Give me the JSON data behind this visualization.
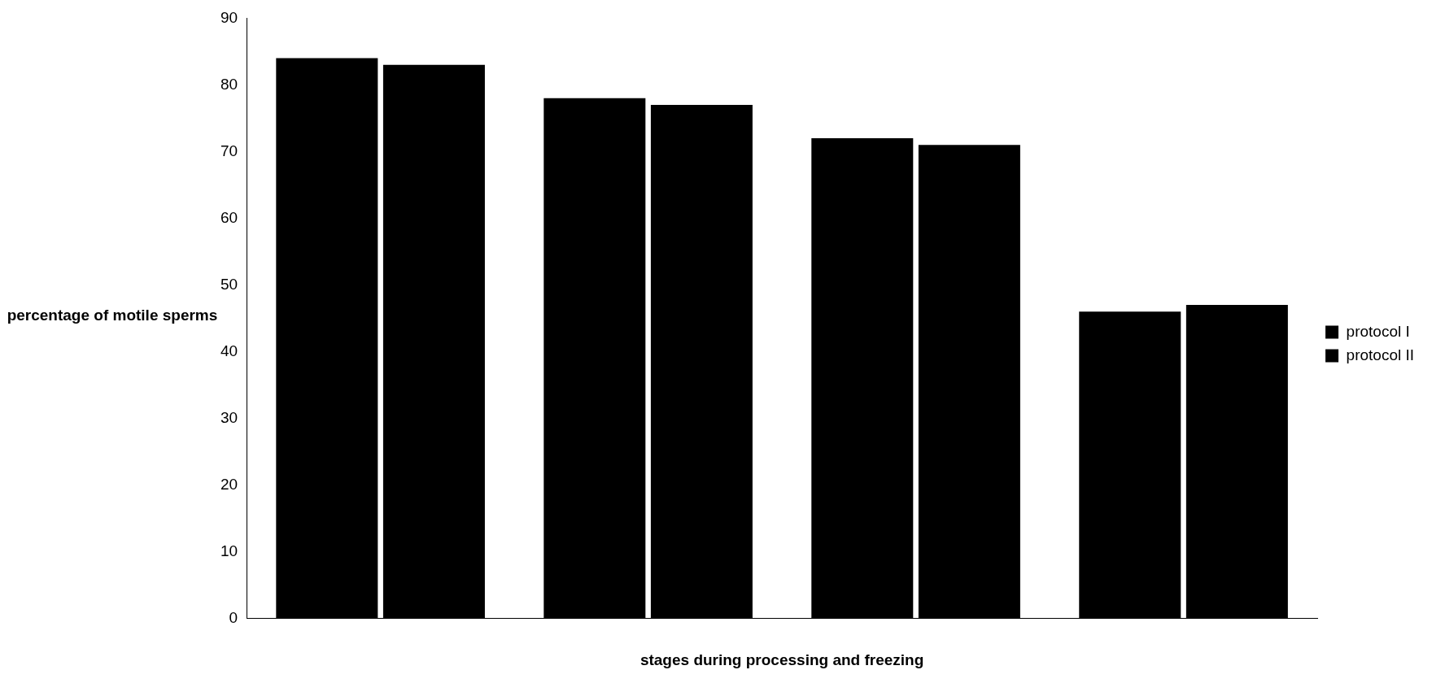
{
  "chart_data": {
    "type": "bar",
    "xlabel": "stages during processing and freezing",
    "ylabel": "percentage of motile sperms",
    "categories": [
      null,
      null,
      null,
      null
    ],
    "series": [
      {
        "name": "protocol I",
        "color": "#000000",
        "values": [
          84,
          78,
          72,
          46
        ]
      },
      {
        "name": "protocol II",
        "color": "#000000",
        "values": [
          83,
          77,
          71,
          47
        ]
      }
    ],
    "ylim": [
      0,
      90
    ],
    "yticks": [
      0,
      10,
      20,
      30,
      40,
      50,
      60,
      70,
      80,
      90
    ],
    "grid": false,
    "legend": "right"
  }
}
